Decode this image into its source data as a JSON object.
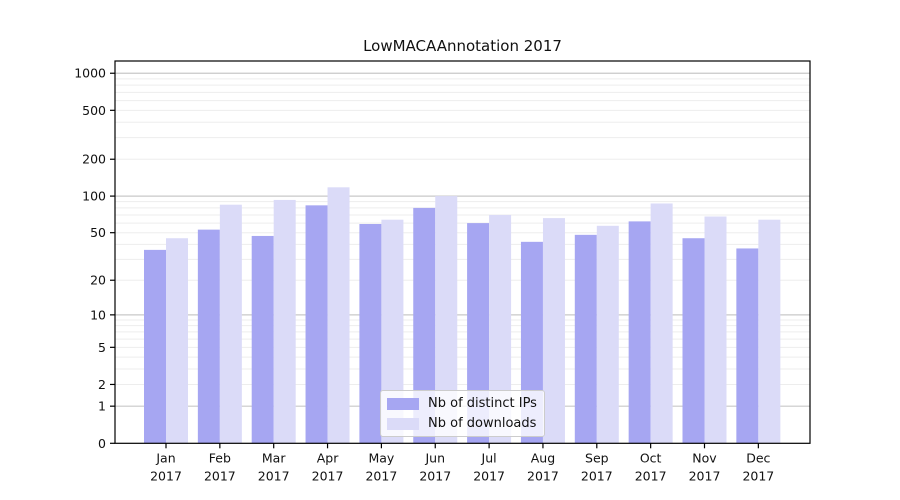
{
  "title": "LowMACAAnnotation 2017",
  "chart_data": {
    "type": "bar",
    "title": "LowMACAAnnotation 2017",
    "categories": [
      "Jan",
      "Feb",
      "Mar",
      "Apr",
      "May",
      "Jun",
      "Jul",
      "Aug",
      "Sep",
      "Oct",
      "Nov",
      "Dec"
    ],
    "category_year": "2017",
    "series": [
      {
        "name": "Nb of distinct IPs",
        "color": "#a6a6f2",
        "values": [
          36,
          53,
          47,
          84,
          59,
          80,
          60,
          42,
          48,
          62,
          45,
          37
        ]
      },
      {
        "name": "Nb of downloads",
        "color": "#dbdbf8",
        "values": [
          45,
          85,
          93,
          118,
          64,
          100,
          70,
          66,
          57,
          87,
          68,
          64
        ]
      }
    ],
    "yscale": "log10(value+1)",
    "yticks": [
      0,
      1,
      2,
      5,
      10,
      20,
      50,
      100,
      200,
      500,
      1000
    ],
    "major_gridline_values": [
      1,
      10,
      100,
      1000
    ],
    "ylim": [
      0,
      1257
    ],
    "xlabel": "",
    "ylabel": "",
    "grid": true,
    "legend_position": "inside lower center"
  }
}
